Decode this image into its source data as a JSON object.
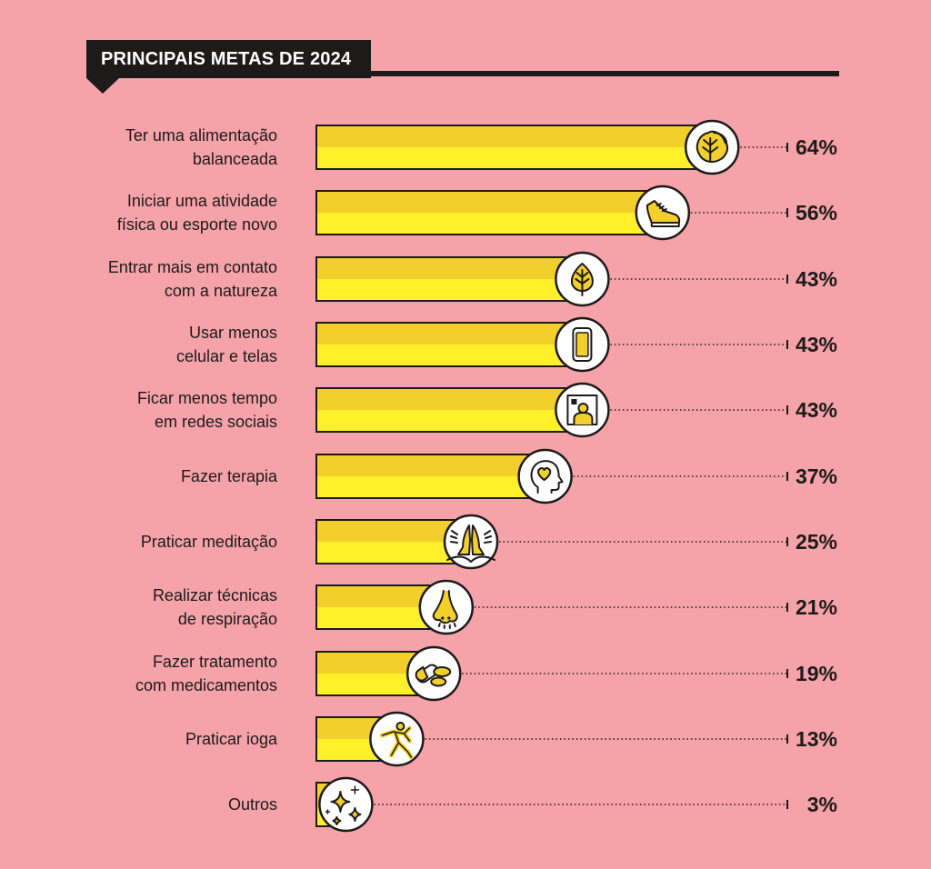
{
  "title": "PRINCIPAIS METAS DE 2024",
  "colors": {
    "background": "#f5a3a8",
    "bar_top": "#f2cf2a",
    "bar_bottom": "#fff02a",
    "bar_stroke": "#1d1a1a",
    "text": "#1d1a1a",
    "title_bg": "#1d1a1a",
    "title_text": "#ffffff"
  },
  "chart_data": {
    "type": "bar",
    "orientation": "horizontal",
    "title": "PRINCIPAIS METAS DE 2024",
    "xlabel": "",
    "ylabel": "",
    "xlim": [
      0,
      100
    ],
    "grid": false,
    "categories": [
      [
        "Ter uma alimentação",
        "balanceada"
      ],
      [
        "Iniciar uma atividade",
        "física ou esporte novo"
      ],
      [
        "Entrar mais em contato",
        "com a natureza"
      ],
      [
        "Usar menos",
        "celular e telas"
      ],
      [
        "Ficar menos tempo",
        "em redes sociais"
      ],
      [
        "Fazer terapia"
      ],
      [
        "Praticar meditação"
      ],
      [
        "Realizar técnicas",
        "de respiração"
      ],
      [
        "Fazer tratamento",
        "com medicamentos"
      ],
      [
        "Praticar ioga"
      ],
      [
        "Outros"
      ]
    ],
    "values": [
      64,
      56,
      43,
      43,
      43,
      37,
      25,
      21,
      19,
      13,
      3
    ],
    "value_labels": [
      "64%",
      "56%",
      "43%",
      "43%",
      "43%",
      "37%",
      "25%",
      "21%",
      "19%",
      "13%",
      "3%"
    ],
    "icons": [
      "lettuce-icon",
      "sneaker-icon",
      "leaf-icon",
      "smartphone-icon",
      "profile-picture-icon",
      "head-heart-icon",
      "praying-hands-icon",
      "nose-icon",
      "pills-icon",
      "yoga-pose-icon",
      "sparkles-icon"
    ]
  }
}
